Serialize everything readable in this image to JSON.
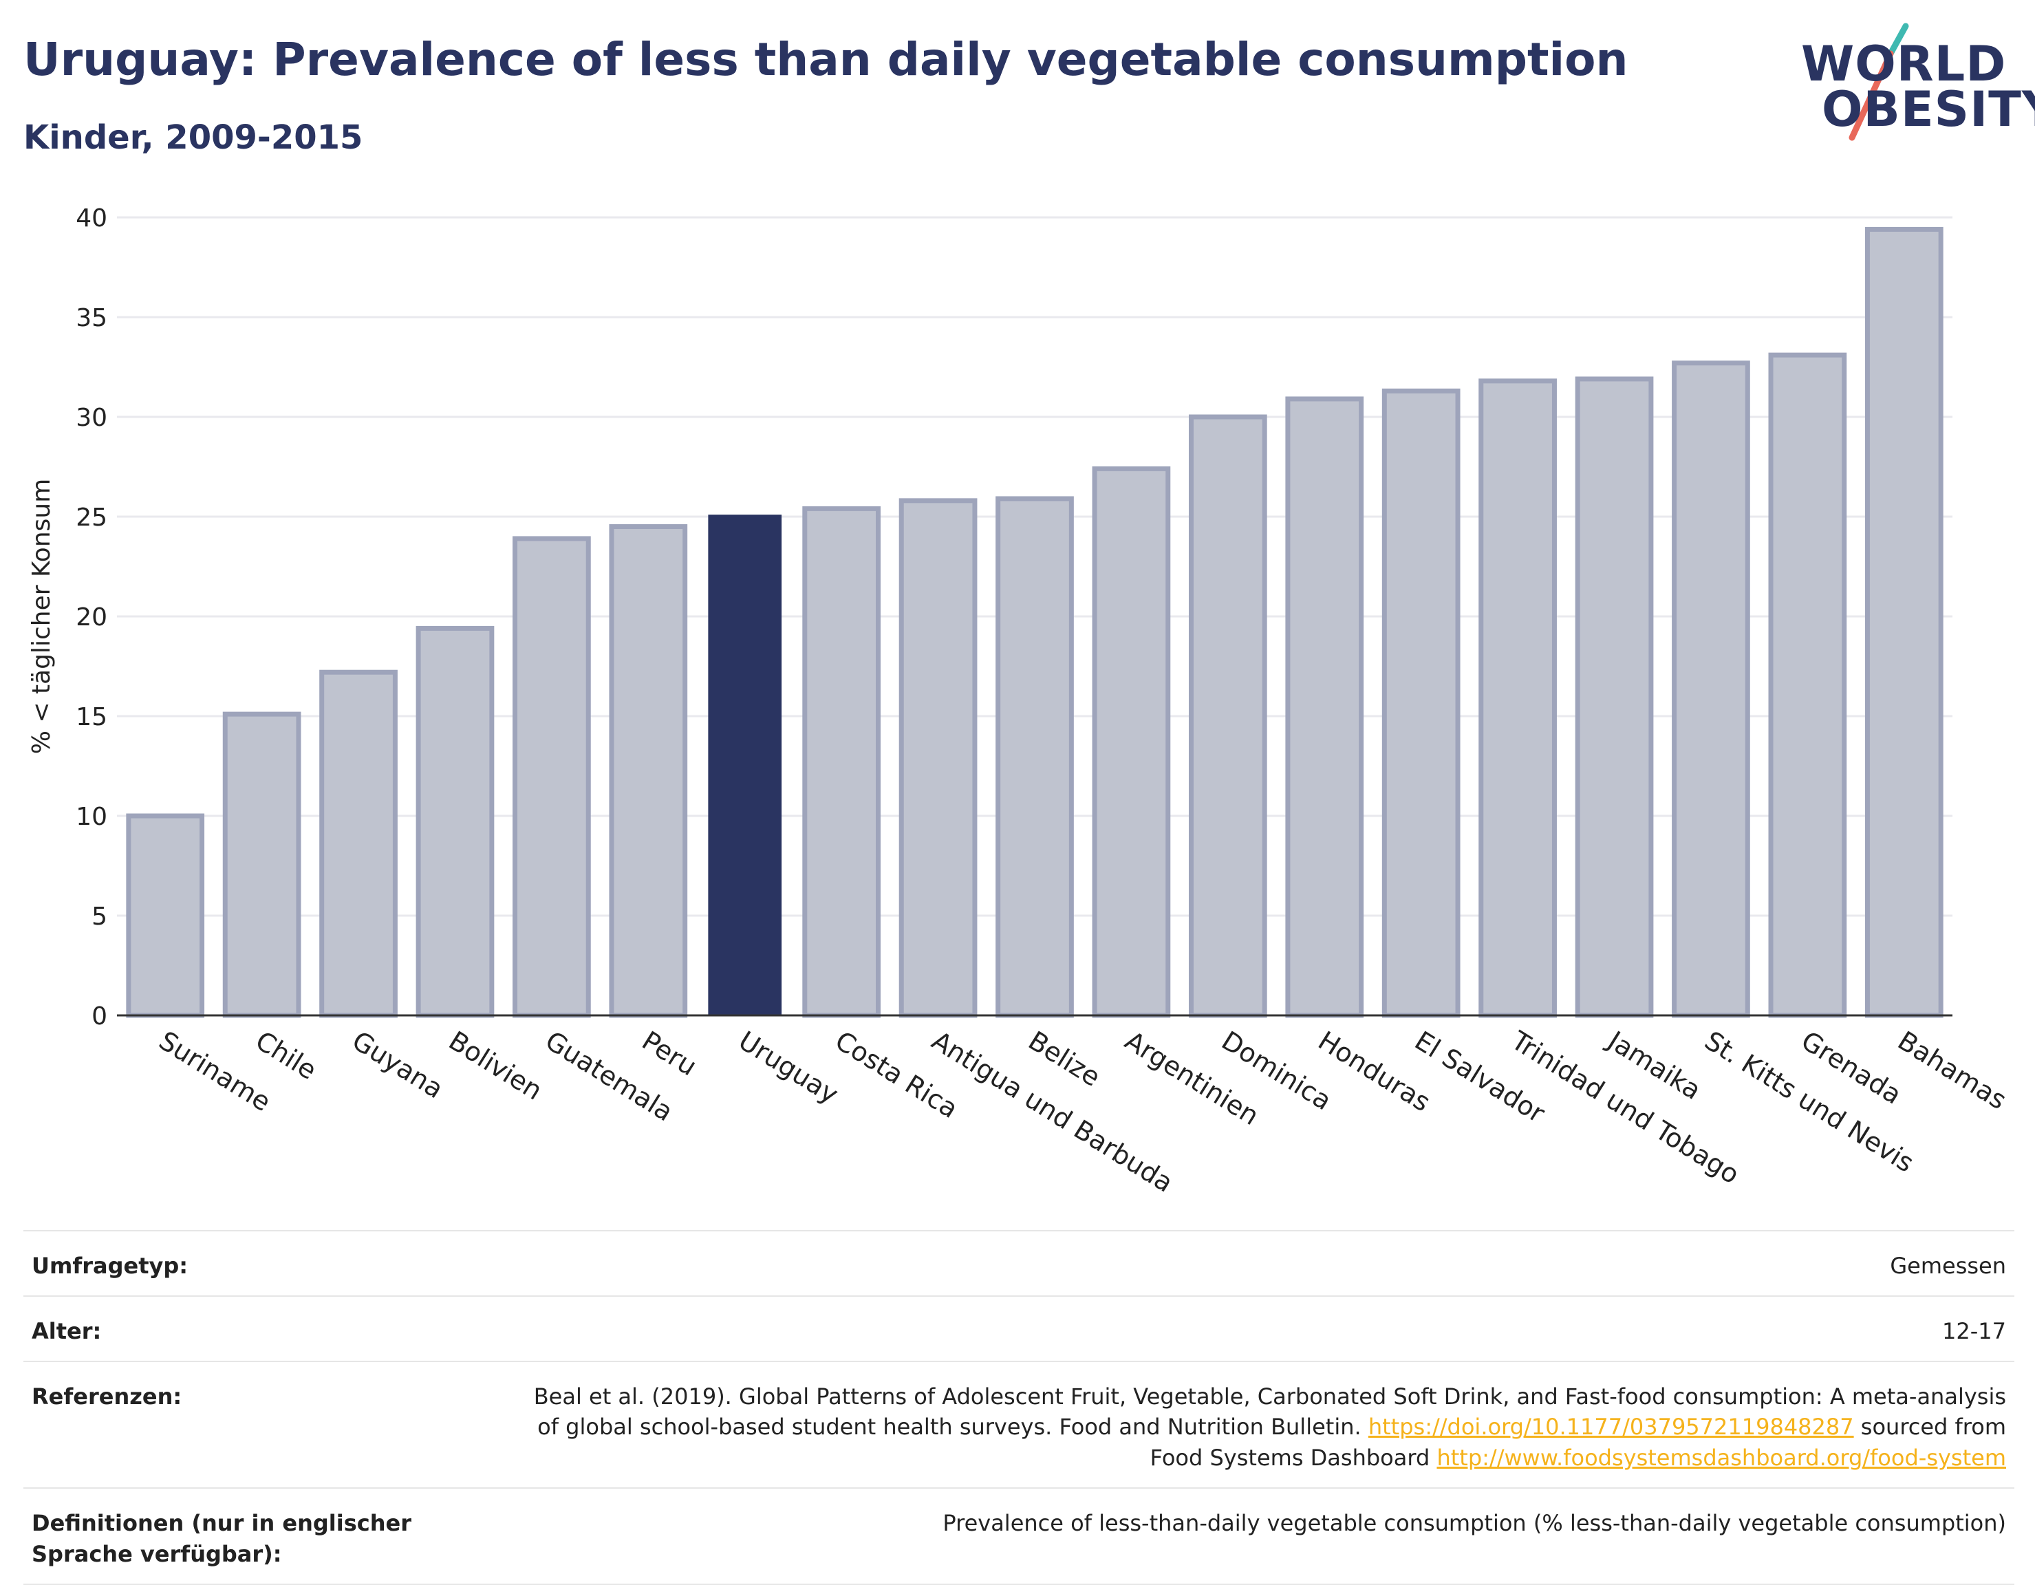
{
  "header": {
    "title": "Uruguay: Prevalence of less than daily vegetable consumption",
    "subtitle": "Kinder, 2009-2015"
  },
  "logo": {
    "line1": "WORLD",
    "line2": "OBESITY"
  },
  "chart_data": {
    "type": "bar",
    "categories": [
      "Suriname",
      "Chile",
      "Guyana",
      "Bolivien",
      "Guatemala",
      "Peru",
      "Uruguay",
      "Costa Rica",
      "Antigua und Barbuda",
      "Belize",
      "Argentinien",
      "Dominica",
      "Honduras",
      "El Salvador",
      "Trinidad und Tobago",
      "Jamaika",
      "St. Kitts und Nevis",
      "Grenada",
      "Bahamas"
    ],
    "values": [
      10.0,
      15.1,
      17.2,
      19.4,
      23.9,
      24.5,
      25.1,
      25.4,
      25.8,
      25.9,
      27.4,
      30.0,
      30.9,
      31.3,
      31.8,
      31.9,
      32.7,
      33.1,
      39.4
    ],
    "highlight": "Uruguay",
    "ylabel": "% < täglicher Konsum",
    "ylim": [
      0,
      40
    ],
    "yticks": [
      0,
      5,
      10,
      15,
      20,
      25,
      30,
      35,
      40
    ],
    "grid": true,
    "colors": {
      "bar": "#bfc3cf",
      "bar_border": "#9ea4bb",
      "highlight": "#2a3461"
    }
  },
  "meta": {
    "survey_type_label": "Umfragetyp:",
    "survey_type_value": "Gemessen",
    "age_label": "Alter:",
    "age_value": "12-17",
    "references_label": "Referenzen:",
    "references_text1": "Beal et al. (2019). Global Patterns of Adolescent Fruit, Vegetable, Carbonated Soft Drink, and Fast-food consumption: A meta-analysis of global school-based student health surveys. Food and Nutrition Bulletin.",
    "references_link1": "https://doi.org/10.1177/0379572119848287",
    "references_text2": "sourced from Food Systems Dashboard",
    "references_link2": "http://www.foodsystemsdashboard.org/food-system",
    "definitions_label": "Definitionen (nur in englischer Sprache verfügbar):",
    "definitions_value": "Prevalence of less-than-daily vegetable consumption (% less-than-daily vegetable consumption)"
  }
}
